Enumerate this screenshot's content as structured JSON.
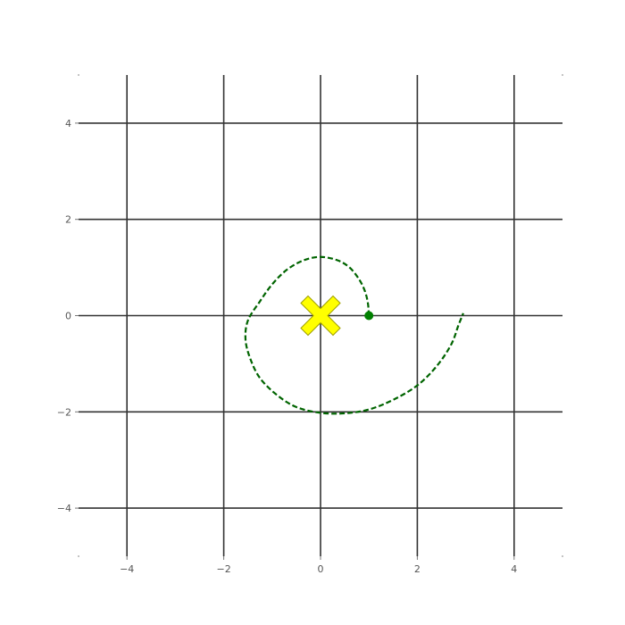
{
  "chart_data": {
    "type": "line",
    "title": "",
    "xlabel": "",
    "ylabel": "",
    "xlim": [
      -5,
      5
    ],
    "ylim": [
      -5,
      5
    ],
    "grid": true,
    "xticks": [
      -4,
      -2,
      0,
      2,
      4
    ],
    "yticks": [
      -4,
      -2,
      0,
      2,
      4
    ],
    "xtick_labels": [
      "−4",
      "−2",
      "0",
      "2",
      "4"
    ],
    "ytick_labels": [
      "−4",
      "−2",
      "0",
      "2",
      "4"
    ],
    "series": [
      {
        "type": "line",
        "style": "dashed",
        "color": "#006400",
        "points": [
          [
            1.0,
            0.0
          ],
          [
            0.98,
            0.25
          ],
          [
            0.92,
            0.5
          ],
          [
            0.8,
            0.75
          ],
          [
            0.6,
            1.0
          ],
          [
            0.35,
            1.15
          ],
          [
            0.0,
            1.22
          ],
          [
            -0.35,
            1.15
          ],
          [
            -0.7,
            0.95
          ],
          [
            -1.0,
            0.65
          ],
          [
            -1.25,
            0.3
          ],
          [
            -1.5,
            -0.1
          ],
          [
            -1.55,
            -0.5
          ],
          [
            -1.45,
            -0.9
          ],
          [
            -1.25,
            -1.3
          ],
          [
            -0.9,
            -1.65
          ],
          [
            -0.5,
            -1.9
          ],
          [
            0.0,
            -2.02
          ],
          [
            0.5,
            -2.03
          ],
          [
            1.0,
            -1.95
          ],
          [
            1.5,
            -1.75
          ],
          [
            2.0,
            -1.45
          ],
          [
            2.4,
            -1.05
          ],
          [
            2.7,
            -0.6
          ],
          [
            2.85,
            -0.2
          ],
          [
            2.95,
            0.05
          ]
        ]
      },
      {
        "type": "scatter",
        "marker": "circle",
        "color": "#008000",
        "points": [
          [
            1.0,
            0.0
          ]
        ]
      },
      {
        "type": "scatter",
        "marker": "x-filled",
        "color": "#ffff00",
        "edgecolor": "#a0a000",
        "points": [
          [
            0.0,
            0.0
          ]
        ]
      }
    ]
  }
}
